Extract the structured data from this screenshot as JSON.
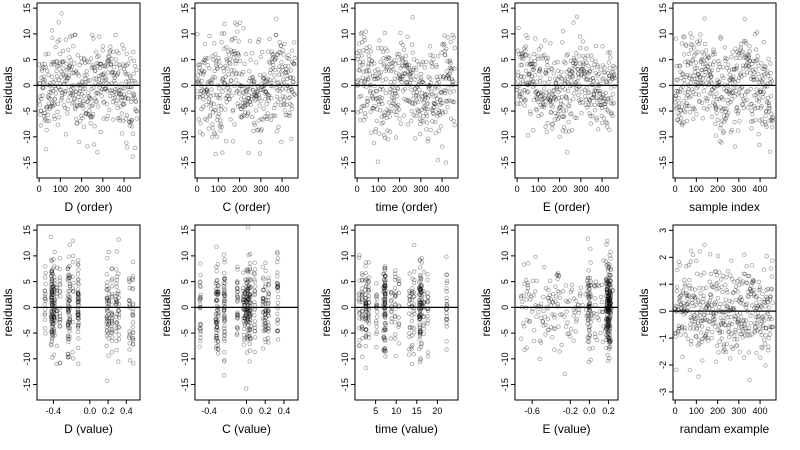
{
  "chart_data": [
    {
      "panel": "1",
      "type": "scatter",
      "xlabel": "D (order)",
      "ylabel": "residuals",
      "xlim": [
        -10,
        475
      ],
      "ylim": [
        -18,
        16
      ],
      "xticks": [
        0,
        100,
        200,
        300,
        400
      ],
      "xtick_labels": [
        "0",
        "100",
        "200",
        "300",
        "400"
      ],
      "yticks": [
        -15,
        -10,
        -5,
        0,
        5,
        10,
        15
      ],
      "ytick_labels": [
        "-15",
        "-10",
        "-5",
        "0",
        "5",
        "10",
        "15"
      ],
      "hline": 0,
      "n_points": 450,
      "x_range": [
        0,
        460
      ],
      "y_sd": 5,
      "pattern": "order",
      "seed": 11
    },
    {
      "panel": "2",
      "type": "scatter",
      "xlabel": "C (order)",
      "ylabel": "residuals",
      "xlim": [
        -10,
        475
      ],
      "ylim": [
        -18,
        16
      ],
      "xticks": [
        0,
        100,
        200,
        300,
        400
      ],
      "xtick_labels": [
        "0",
        "100",
        "200",
        "300",
        "400"
      ],
      "yticks": [
        -15,
        -10,
        -5,
        0,
        5,
        10,
        15
      ],
      "ytick_labels": [
        "-15",
        "-10",
        "-5",
        "0",
        "5",
        "10",
        "15"
      ],
      "hline": 0,
      "n_points": 450,
      "x_range": [
        0,
        460
      ],
      "y_sd": 5,
      "pattern": "order",
      "seed": 22
    },
    {
      "panel": "3",
      "type": "scatter",
      "xlabel": "time (order)",
      "ylabel": "residuals",
      "xlim": [
        -10,
        475
      ],
      "ylim": [
        -18,
        16
      ],
      "xticks": [
        0,
        100,
        200,
        300,
        400
      ],
      "xtick_labels": [
        "0",
        "100",
        "200",
        "300",
        "400"
      ],
      "yticks": [
        -15,
        -10,
        -5,
        0,
        5,
        10,
        15
      ],
      "ytick_labels": [
        "-15",
        "-10",
        "-5",
        "0",
        "5",
        "10",
        "15"
      ],
      "hline": 0,
      "n_points": 450,
      "x_range": [
        0,
        460
      ],
      "y_sd": 5,
      "pattern": "order",
      "seed": 33
    },
    {
      "panel": "4",
      "type": "scatter",
      "xlabel": "E (order)",
      "ylabel": "residuals",
      "xlim": [
        -10,
        475
      ],
      "ylim": [
        -18,
        16
      ],
      "xticks": [
        0,
        100,
        200,
        300,
        400
      ],
      "xtick_labels": [
        "0",
        "100",
        "200",
        "300",
        "400"
      ],
      "yticks": [
        -15,
        -10,
        -5,
        0,
        5,
        10,
        15
      ],
      "ytick_labels": [
        "-15",
        "-10",
        "-5",
        "0",
        "5",
        "10",
        "15"
      ],
      "hline": 0,
      "n_points": 450,
      "x_range": [
        0,
        460
      ],
      "y_sd": 5,
      "pattern": "order",
      "seed": 44
    },
    {
      "panel": "5",
      "type": "scatter",
      "xlabel": "sample index",
      "ylabel": "residuals",
      "xlim": [
        -10,
        475
      ],
      "ylim": [
        -18,
        16
      ],
      "xticks": [
        0,
        100,
        200,
        300,
        400
      ],
      "xtick_labels": [
        "0",
        "100",
        "200",
        "300",
        "400"
      ],
      "yticks": [
        -15,
        -10,
        -5,
        0,
        5,
        10,
        15
      ],
      "ytick_labels": [
        "-15",
        "-10",
        "-5",
        "0",
        "5",
        "10",
        "15"
      ],
      "hline": 0,
      "n_points": 450,
      "x_range": [
        0,
        460
      ],
      "y_sd": 5,
      "pattern": "order",
      "seed": 55
    },
    {
      "panel": "6",
      "type": "scatter",
      "xlabel": "D (value)",
      "ylabel": "residuals",
      "xlim": [
        -0.58,
        0.55
      ],
      "ylim": [
        -18,
        16
      ],
      "xticks": [
        -0.4,
        0,
        0.2,
        0.4
      ],
      "xtick_labels": [
        "-0.4",
        "0.0",
        "0.2",
        "0.4"
      ],
      "yticks": [
        -15,
        -10,
        -5,
        0,
        5,
        10,
        15
      ],
      "ytick_labels": [
        "-15",
        "-10",
        "-5",
        "0",
        "5",
        "10",
        "15"
      ],
      "hline": 0,
      "n_points": 450,
      "x_range": [
        -0.5,
        0.5
      ],
      "y_sd": 5,
      "pattern": "columns",
      "n_columns": 22,
      "seed": 66
    },
    {
      "panel": "7",
      "type": "scatter",
      "xlabel": "C (value)",
      "ylabel": "residuals",
      "xlim": [
        -0.55,
        0.55
      ],
      "ylim": [
        -18,
        16
      ],
      "xticks": [
        -0.4,
        0,
        0.2,
        0.4
      ],
      "xtick_labels": [
        "-0.4",
        "0.0",
        "0.2",
        "0.4"
      ],
      "yticks": [
        -15,
        -10,
        -5,
        0,
        5,
        10,
        15
      ],
      "ytick_labels": [
        "-15",
        "-10",
        "-5",
        "0",
        "5",
        "10",
        "15"
      ],
      "hline": 0,
      "n_points": 450,
      "x_range": [
        -0.5,
        0.5
      ],
      "y_sd": 5,
      "pattern": "columns",
      "n_columns": 18,
      "seed": 77
    },
    {
      "panel": "8",
      "type": "scatter",
      "xlabel": "time (value)",
      "ylabel": "residuals",
      "xlim": [
        0,
        25
      ],
      "ylim": [
        -18,
        16
      ],
      "xticks": [
        5,
        10,
        15,
        20
      ],
      "xtick_labels": [
        "5",
        "10",
        "15",
        "20"
      ],
      "yticks": [
        -15,
        -10,
        -5,
        0,
        5,
        10,
        15
      ],
      "ytick_labels": [
        "-15",
        "-10",
        "-5",
        "0",
        "5",
        "10",
        "15"
      ],
      "hline": 0,
      "n_points": 450,
      "x_range": [
        1,
        24
      ],
      "y_sd": 5,
      "pattern": "columns",
      "n_columns": 24,
      "seed": 88
    },
    {
      "panel": "9",
      "type": "scatter",
      "xlabel": "E (value)",
      "ylabel": "residuals",
      "xlim": [
        -0.78,
        0.3
      ],
      "ylim": [
        -18,
        16
      ],
      "xticks": [
        -0.6,
        -0.2,
        0,
        0.2
      ],
      "xtick_labels": [
        "-0.6",
        "-0.2",
        "0.0",
        "0.2"
      ],
      "yticks": [
        -15,
        -10,
        -5,
        0,
        5,
        10,
        15
      ],
      "ytick_labels": [
        "-15",
        "-10",
        "-5",
        "0",
        "5",
        "10",
        "15"
      ],
      "hline": 0,
      "n_points": 450,
      "x_range": [
        -0.72,
        0.25
      ],
      "y_sd": 5,
      "pattern": "skewed",
      "seed": 99
    },
    {
      "panel": "10",
      "type": "scatter",
      "xlabel": "randam example",
      "ylabel": "residuals",
      "xlim": [
        -10,
        475
      ],
      "ylim": [
        -3.3,
        3.2
      ],
      "xticks": [
        0,
        100,
        200,
        300,
        400
      ],
      "xtick_labels": [
        "0",
        "100",
        "200",
        "300",
        "400"
      ],
      "yticks": [
        -3,
        -2,
        -1,
        0,
        1,
        2,
        3
      ],
      "ytick_labels": [
        "-3",
        "-2",
        "-1",
        "0",
        "1",
        "2",
        "3"
      ],
      "hline": 0,
      "n_points": 450,
      "x_range": [
        0,
        460
      ],
      "y_sd": 1,
      "pattern": "random",
      "seed": 111
    }
  ]
}
